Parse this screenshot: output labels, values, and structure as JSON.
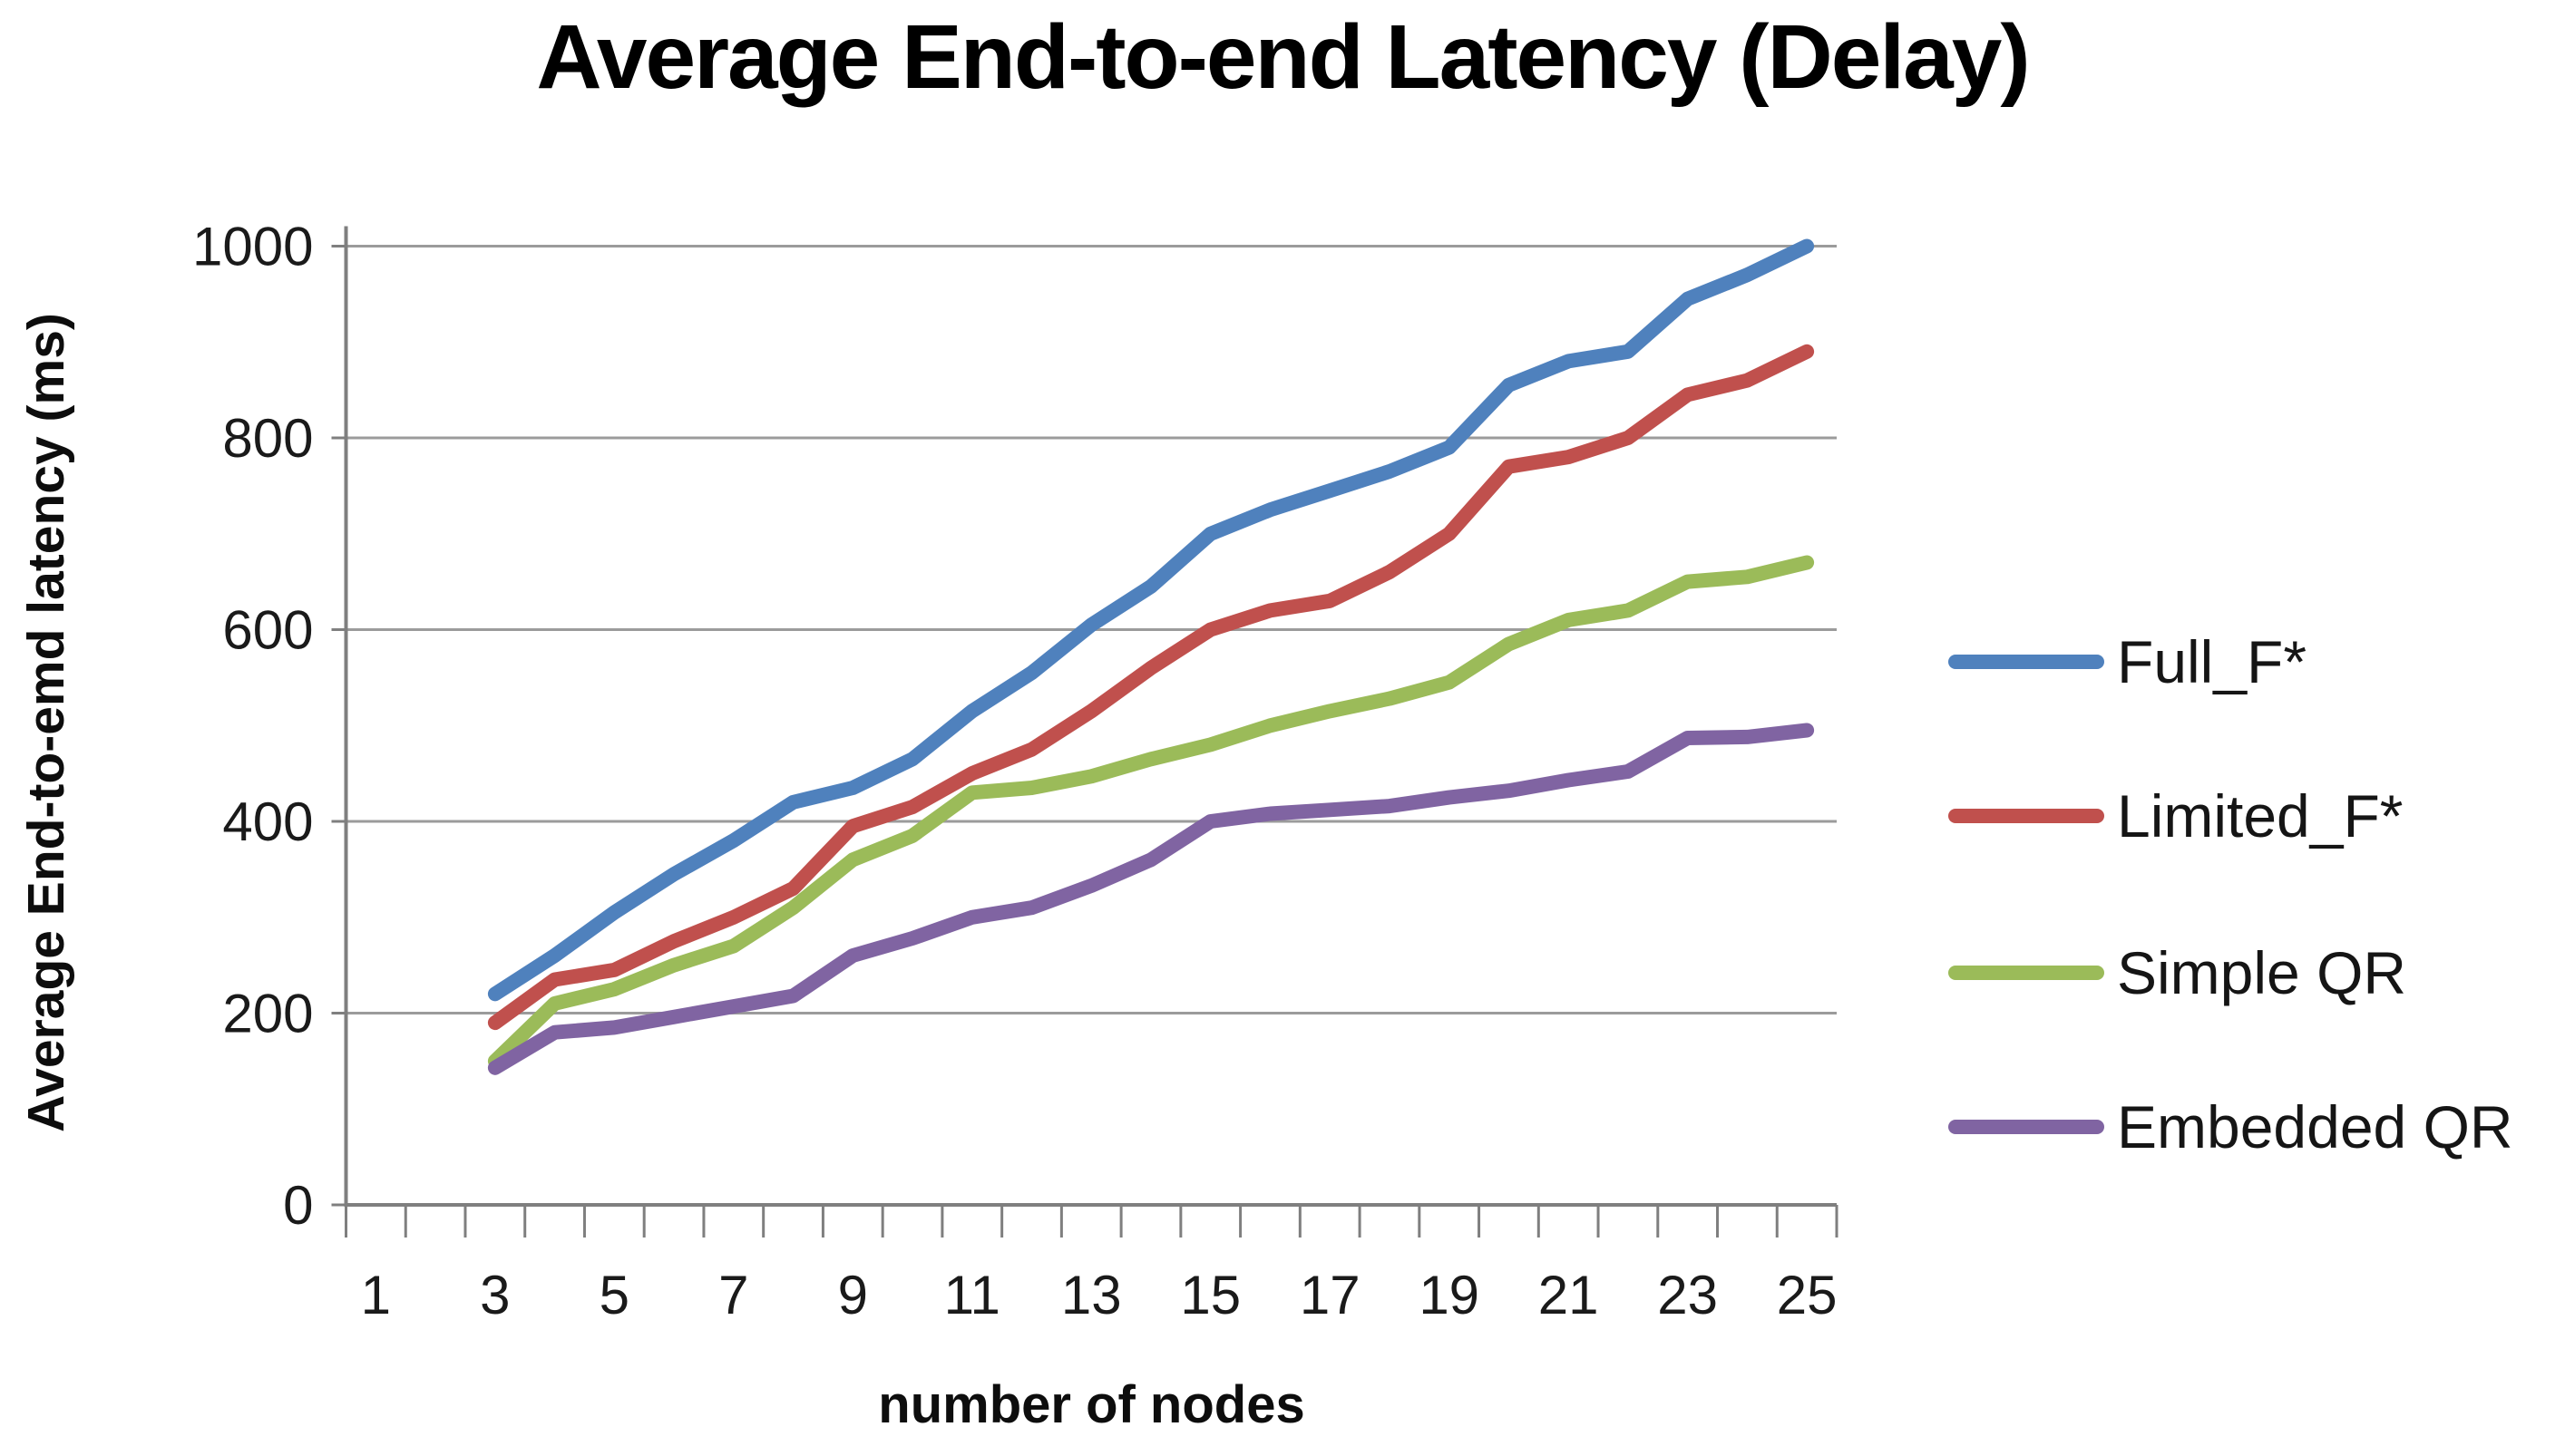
{
  "title": "Average End-to-end Latency (Delay)",
  "chart_data": {
    "type": "line",
    "title": "Average End-to-end Latency (Delay)",
    "xlabel": "number of nodes",
    "ylabel": "Average End-to-emd latency (ms)",
    "x_axis_range": [
      1,
      25
    ],
    "ylim": [
      0,
      1000
    ],
    "grid": "horizontal",
    "legend_position": "right",
    "y_ticks": [
      0,
      200,
      400,
      600,
      800,
      1000
    ],
    "x_ticks": [
      1,
      3,
      5,
      7,
      9,
      11,
      13,
      15,
      17,
      19,
      21,
      23,
      25
    ],
    "x": [
      3,
      4,
      5,
      6,
      7,
      8,
      9,
      10,
      11,
      12,
      13,
      14,
      15,
      16,
      17,
      18,
      19,
      20,
      21,
      22,
      23,
      24,
      25
    ],
    "series": [
      {
        "name": "Full_F*",
        "color": "#4F81BD",
        "values": [
          220,
          260,
          305,
          345,
          380,
          420,
          435,
          465,
          515,
          555,
          605,
          645,
          700,
          725,
          745,
          765,
          790,
          855,
          880,
          890,
          945,
          970,
          1000
        ]
      },
      {
        "name": "Limited_F*",
        "color": "#C0504D",
        "values": [
          190,
          235,
          245,
          275,
          300,
          330,
          395,
          415,
          450,
          475,
          515,
          560,
          600,
          620,
          630,
          660,
          700,
          770,
          780,
          800,
          845,
          860,
          890
        ]
      },
      {
        "name": "Simple QR",
        "color": "#9BBB59",
        "values": [
          150,
          210,
          225,
          250,
          270,
          310,
          360,
          385,
          430,
          435,
          447,
          465,
          480,
          500,
          515,
          528,
          545,
          585,
          610,
          620,
          650,
          655,
          670
        ]
      },
      {
        "name": "Embedded QR",
        "color": "#8064A2",
        "values": [
          143,
          180,
          185,
          196,
          207,
          218,
          260,
          278,
          300,
          310,
          333,
          360,
          400,
          408,
          412,
          416,
          425,
          432,
          443,
          452,
          487,
          488,
          495
        ]
      }
    ]
  },
  "style": {
    "grid_color": "#9b9b9b",
    "axis_color": "#7f7f7f",
    "tick_label_color": "#1a1a1a",
    "line_width": 16
  },
  "legend_tops": [
    675,
    845,
    1018,
    1188
  ]
}
